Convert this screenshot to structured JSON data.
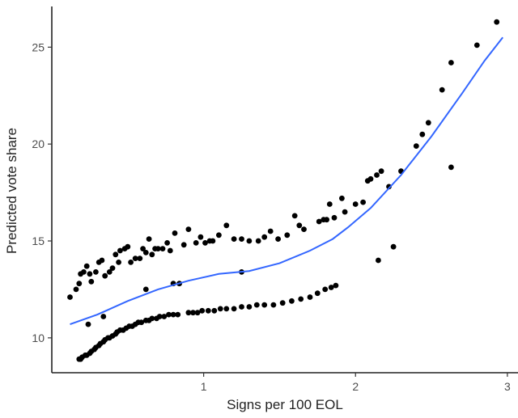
{
  "chart_data": {
    "type": "scatter",
    "title": "",
    "xlabel": "Signs per 100 EOL",
    "ylabel": "Predicted vote share",
    "xlim": [
      0.0,
      3.07
    ],
    "ylim": [
      8.2,
      27.1
    ],
    "x_ticks": [
      1,
      2,
      3
    ],
    "y_ticks": [
      10,
      15,
      20,
      25
    ],
    "grid": false,
    "legend": "none",
    "colors": {
      "points": "#000000",
      "smooth_line": "#3366ff",
      "axis": "#222222"
    },
    "points": [
      [
        0.12,
        12.1
      ],
      [
        0.16,
        12.5
      ],
      [
        0.18,
        12.8
      ],
      [
        0.19,
        13.3
      ],
      [
        0.21,
        13.4
      ],
      [
        0.23,
        13.7
      ],
      [
        0.25,
        13.3
      ],
      [
        0.26,
        12.9
      ],
      [
        0.29,
        13.4
      ],
      [
        0.31,
        13.9
      ],
      [
        0.33,
        14.0
      ],
      [
        0.35,
        13.2
      ],
      [
        0.38,
        13.4
      ],
      [
        0.4,
        13.6
      ],
      [
        0.42,
        14.3
      ],
      [
        0.44,
        13.9
      ],
      [
        0.45,
        14.5
      ],
      [
        0.48,
        14.6
      ],
      [
        0.5,
        14.7
      ],
      [
        0.52,
        13.9
      ],
      [
        0.55,
        14.1
      ],
      [
        0.58,
        14.1
      ],
      [
        0.6,
        14.6
      ],
      [
        0.62,
        14.4
      ],
      [
        0.64,
        15.1
      ],
      [
        0.66,
        14.3
      ],
      [
        0.68,
        14.6
      ],
      [
        0.7,
        14.6
      ],
      [
        0.73,
        14.6
      ],
      [
        0.76,
        14.9
      ],
      [
        0.78,
        14.5
      ],
      [
        0.81,
        15.4
      ],
      [
        0.87,
        14.8
      ],
      [
        0.9,
        15.6
      ],
      [
        0.95,
        14.9
      ],
      [
        0.98,
        15.2
      ],
      [
        1.01,
        14.9
      ],
      [
        1.04,
        15.0
      ],
      [
        1.06,
        15.0
      ],
      [
        1.1,
        15.3
      ],
      [
        1.15,
        15.8
      ],
      [
        1.2,
        15.1
      ],
      [
        1.25,
        15.1
      ],
      [
        1.3,
        15.0
      ],
      [
        1.36,
        15.0
      ],
      [
        1.4,
        15.2
      ],
      [
        1.44,
        15.5
      ],
      [
        1.49,
        15.1
      ],
      [
        1.55,
        15.3
      ],
      [
        1.6,
        16.3
      ],
      [
        1.63,
        15.8
      ],
      [
        1.66,
        15.6
      ],
      [
        1.76,
        16.0
      ],
      [
        1.79,
        16.1
      ],
      [
        1.81,
        16.1
      ],
      [
        1.83,
        16.9
      ],
      [
        1.86,
        16.2
      ],
      [
        1.91,
        17.2
      ],
      [
        1.93,
        16.5
      ],
      [
        2.0,
        16.9
      ],
      [
        2.05,
        17.0
      ],
      [
        2.08,
        18.1
      ],
      [
        2.1,
        18.2
      ],
      [
        2.14,
        18.4
      ],
      [
        2.17,
        18.6
      ],
      [
        2.22,
        17.8
      ],
      [
        2.3,
        18.6
      ],
      [
        2.4,
        19.9
      ],
      [
        2.44,
        20.5
      ],
      [
        2.48,
        21.1
      ],
      [
        2.57,
        22.8
      ],
      [
        2.63,
        24.2
      ],
      [
        2.8,
        25.1
      ],
      [
        2.93,
        26.3
      ],
      [
        0.24,
        10.7
      ],
      [
        0.34,
        11.1
      ],
      [
        0.62,
        12.5
      ],
      [
        0.8,
        12.8
      ],
      [
        0.84,
        12.8
      ],
      [
        1.25,
        13.4
      ],
      [
        2.15,
        14.0
      ],
      [
        2.25,
        14.7
      ],
      [
        2.63,
        18.8
      ],
      [
        0.18,
        8.9
      ],
      [
        0.19,
        8.9
      ],
      [
        0.2,
        9.0
      ],
      [
        0.22,
        9.1
      ],
      [
        0.23,
        9.1
      ],
      [
        0.25,
        9.2
      ],
      [
        0.26,
        9.3
      ],
      [
        0.28,
        9.4
      ],
      [
        0.29,
        9.5
      ],
      [
        0.31,
        9.6
      ],
      [
        0.32,
        9.7
      ],
      [
        0.34,
        9.8
      ],
      [
        0.35,
        9.9
      ],
      [
        0.37,
        10.0
      ],
      [
        0.38,
        10.0
      ],
      [
        0.4,
        10.1
      ],
      [
        0.42,
        10.2
      ],
      [
        0.43,
        10.3
      ],
      [
        0.45,
        10.4
      ],
      [
        0.47,
        10.4
      ],
      [
        0.49,
        10.5
      ],
      [
        0.51,
        10.6
      ],
      [
        0.53,
        10.6
      ],
      [
        0.55,
        10.7
      ],
      [
        0.57,
        10.8
      ],
      [
        0.59,
        10.8
      ],
      [
        0.62,
        10.9
      ],
      [
        0.64,
        10.9
      ],
      [
        0.66,
        11.0
      ],
      [
        0.69,
        11.0
      ],
      [
        0.71,
        11.1
      ],
      [
        0.74,
        11.1
      ],
      [
        0.77,
        11.2
      ],
      [
        0.8,
        11.2
      ],
      [
        0.83,
        11.2
      ],
      [
        0.9,
        11.3
      ],
      [
        0.93,
        11.3
      ],
      [
        0.96,
        11.3
      ],
      [
        0.99,
        11.4
      ],
      [
        1.03,
        11.4
      ],
      [
        1.07,
        11.4
      ],
      [
        1.11,
        11.5
      ],
      [
        1.15,
        11.5
      ],
      [
        1.2,
        11.5
      ],
      [
        1.25,
        11.6
      ],
      [
        1.3,
        11.6
      ],
      [
        1.35,
        11.7
      ],
      [
        1.4,
        11.7
      ],
      [
        1.46,
        11.7
      ],
      [
        1.52,
        11.8
      ],
      [
        1.58,
        11.9
      ],
      [
        1.64,
        12.0
      ],
      [
        1.7,
        12.1
      ],
      [
        1.75,
        12.3
      ],
      [
        1.8,
        12.5
      ],
      [
        1.84,
        12.6
      ],
      [
        1.87,
        12.7
      ]
    ],
    "smooth_line": [
      [
        0.12,
        10.7
      ],
      [
        0.3,
        11.2
      ],
      [
        0.5,
        11.9
      ],
      [
        0.7,
        12.5
      ],
      [
        0.9,
        12.95
      ],
      [
        1.1,
        13.3
      ],
      [
        1.3,
        13.45
      ],
      [
        1.5,
        13.85
      ],
      [
        1.7,
        14.5
      ],
      [
        1.85,
        15.1
      ],
      [
        1.95,
        15.7
      ],
      [
        2.1,
        16.7
      ],
      [
        2.3,
        18.4
      ],
      [
        2.5,
        20.4
      ],
      [
        2.7,
        22.6
      ],
      [
        2.85,
        24.3
      ],
      [
        2.97,
        25.5
      ]
    ]
  }
}
